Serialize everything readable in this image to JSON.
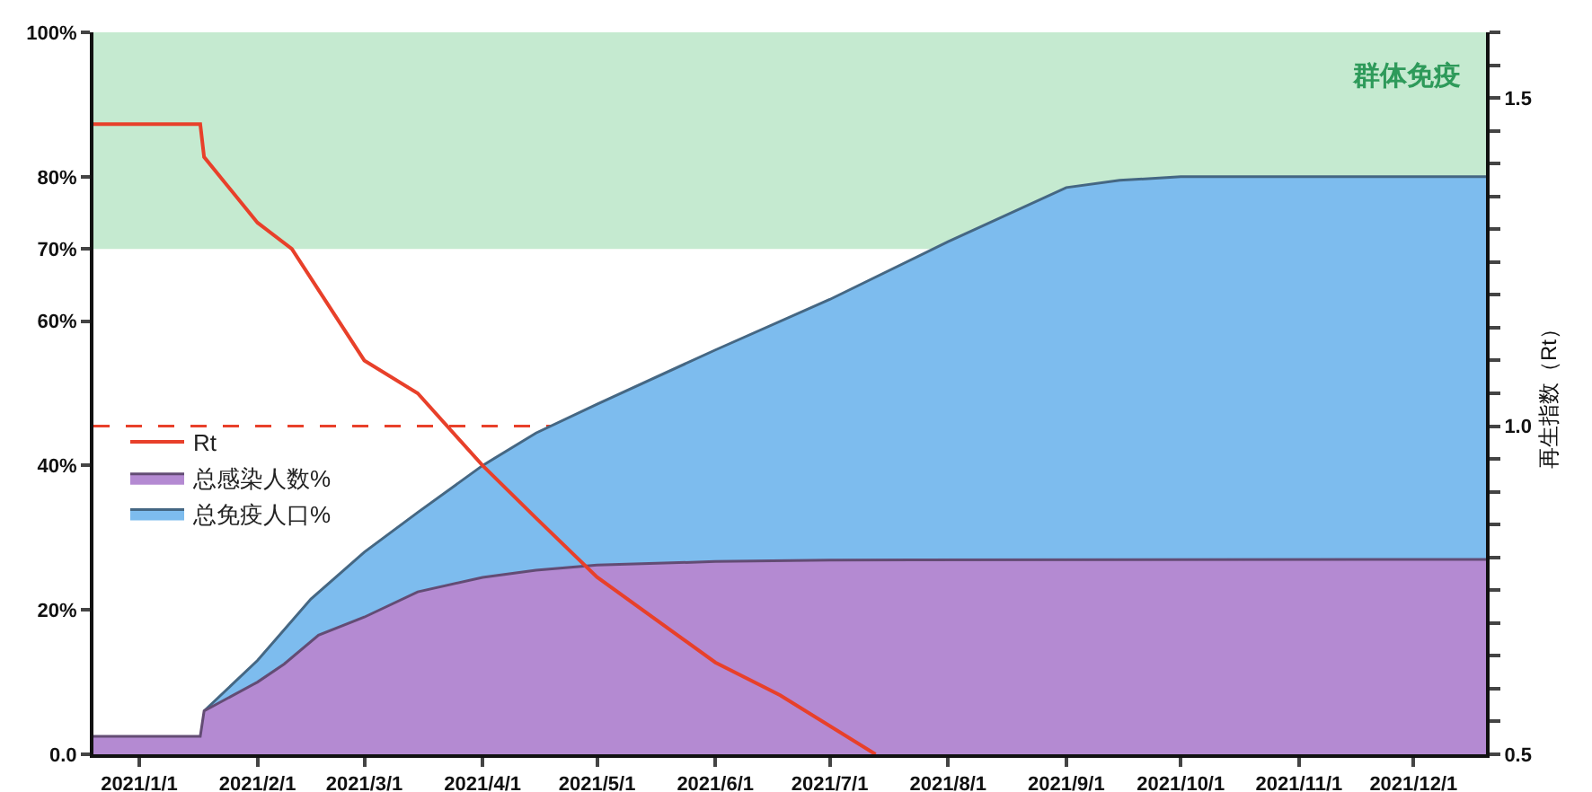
{
  "chart_data": {
    "type": "area",
    "y2label": "再生指数（Rt）",
    "xlim": [
      "2020-12-20",
      "2021-12-20"
    ],
    "xticks": [
      {
        "value": "2021-01-01",
        "label": "2021/1/1"
      },
      {
        "value": "2021-02-01",
        "label": "2021/2/1"
      },
      {
        "value": "2021-03-01",
        "label": "2021/3/1"
      },
      {
        "value": "2021-04-01",
        "label": "2021/4/1"
      },
      {
        "value": "2021-05-01",
        "label": "2021/5/1"
      },
      {
        "value": "2021-06-01",
        "label": "2021/6/1"
      },
      {
        "value": "2021-07-01",
        "label": "2021/7/1"
      },
      {
        "value": "2021-08-01",
        "label": "2021/8/1"
      },
      {
        "value": "2021-09-01",
        "label": "2021/9/1"
      },
      {
        "value": "2021-10-01",
        "label": "2021/10/1"
      },
      {
        "value": "2021-11-01",
        "label": "2021/11/1"
      },
      {
        "value": "2021-12-01",
        "label": "2021/12/1"
      }
    ],
    "ylim": [
      0,
      100
    ],
    "yticks": [
      {
        "value": 0,
        "label": "0.0"
      },
      {
        "value": 20,
        "label": "20%"
      },
      {
        "value": 40,
        "label": "40%"
      },
      {
        "value": 60,
        "label": "60%"
      },
      {
        "value": 70,
        "label": "70%"
      },
      {
        "value": 80,
        "label": "80%"
      },
      {
        "value": 100,
        "label": "100%"
      }
    ],
    "y2lim": [
      0.5,
      1.6
    ],
    "y2ticks": [
      0.5,
      {
        "value": 0.55,
        "label": null
      },
      {
        "value": 0.6,
        "label": null
      },
      {
        "value": 0.65,
        "label": null
      },
      {
        "value": 0.7,
        "label": null
      },
      {
        "value": 0.75,
        "label": null
      },
      {
        "value": 0.8,
        "label": null
      },
      {
        "value": 0.85,
        "label": null
      },
      {
        "value": 0.9,
        "label": null
      },
      {
        "value": 0.95,
        "label": null
      },
      {
        "value": 1.0,
        "label": "1.0"
      },
      {
        "value": 1.05,
        "label": null
      },
      {
        "value": 1.1,
        "label": null
      },
      {
        "value": 1.15,
        "label": null
      },
      {
        "value": 1.2,
        "label": null
      },
      {
        "value": 1.25,
        "label": null
      },
      {
        "value": 1.3,
        "label": null
      },
      {
        "value": 1.35,
        "label": null
      },
      {
        "value": 1.4,
        "label": null
      },
      {
        "value": 1.45,
        "label": null
      },
      {
        "value": 1.5,
        "label": "1.5"
      },
      {
        "value": 1.55,
        "label": null
      },
      {
        "value": 1.6,
        "label": null
      }
    ],
    "series": [
      {
        "name": "总免疫人口%",
        "type": "area",
        "color": "#7dbcee",
        "x": [
          "2021-01-18",
          "2021-02-01",
          "2021-02-15",
          "2021-03-01",
          "2021-03-15",
          "2021-04-01",
          "2021-04-15",
          "2021-05-01",
          "2021-06-01",
          "2021-07-01",
          "2021-08-01",
          "2021-09-01",
          "2021-09-15",
          "2021-10-01",
          "2021-12-20"
        ],
        "values": [
          6,
          13,
          21.5,
          28,
          33.5,
          40,
          44.5,
          48.5,
          56,
          63,
          71,
          78.5,
          79.5,
          80,
          80
        ]
      },
      {
        "name": "总感染人数%",
        "type": "area",
        "color": "#b48ad2",
        "x": [
          "2020-12-20",
          "2021-01-17",
          "2021-01-18",
          "2021-02-01",
          "2021-02-08",
          "2021-02-17",
          "2021-03-01",
          "2021-03-15",
          "2021-04-01",
          "2021-04-15",
          "2021-05-01",
          "2021-06-01",
          "2021-07-01",
          "2021-12-20"
        ],
        "values": [
          2.5,
          2.5,
          6,
          10,
          12.5,
          16.5,
          19,
          22.5,
          24.5,
          25.5,
          26.2,
          26.7,
          26.9,
          27
        ]
      },
      {
        "name": "Rt",
        "type": "line",
        "axis": "y2",
        "color": "#e8402a",
        "x": [
          "2020-12-20",
          "2021-01-17",
          "2021-01-18",
          "2021-02-01",
          "2021-02-10",
          "2021-03-01",
          "2021-03-15",
          "2021-04-01",
          "2021-04-15",
          "2021-05-01",
          "2021-06-01",
          "2021-06-18",
          "2021-07-13"
        ],
        "values": [
          1.46,
          1.46,
          1.41,
          1.31,
          1.27,
          1.1,
          1.05,
          0.94,
          0.86,
          0.77,
          0.64,
          0.59,
          0.5
        ]
      }
    ],
    "bands": [
      {
        "axis": "y",
        "from": 70,
        "to": 100,
        "label": "群体免疫",
        "color": "#c5ead0"
      }
    ],
    "ref_lines": [
      {
        "axis": "y2",
        "value": 1.0,
        "color": "#e8402a",
        "line_style": "dashed"
      }
    ],
    "legend": "left",
    "grid": false
  }
}
